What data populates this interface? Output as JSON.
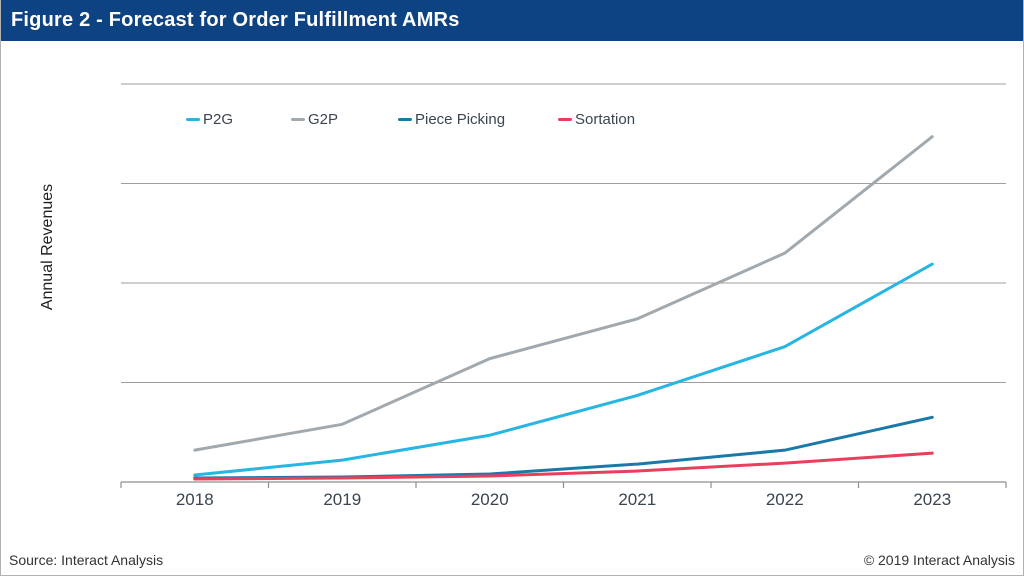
{
  "header": {
    "title": "Figure 2 - Forecast for Order Fulfillment AMRs",
    "bg_color": "#0d4383",
    "text_color": "#ffffff"
  },
  "chart_data": {
    "type": "line",
    "title": "Forecast for Order Fulfillment AMRs",
    "categories": [
      "2018",
      "2019",
      "2020",
      "2021",
      "2022",
      "2023"
    ],
    "series": [
      {
        "name": "P2G",
        "color": "#27b5e2",
        "values": [
          0.07,
          0.22,
          0.47,
          0.87,
          1.36,
          2.19
        ]
      },
      {
        "name": "G2P",
        "color": "#a2a9ae",
        "values": [
          0.32,
          0.58,
          1.24,
          1.64,
          2.3,
          3.47
        ]
      },
      {
        "name": "Piece Picking",
        "color": "#1a79a8",
        "values": [
          0.04,
          0.05,
          0.08,
          0.18,
          0.32,
          0.65
        ]
      },
      {
        "name": "Sortation",
        "color": "#e93e5c",
        "values": [
          0.03,
          0.04,
          0.06,
          0.11,
          0.19,
          0.29
        ]
      }
    ],
    "xlabel": "",
    "ylabel": "Annual Revenues",
    "ylim": [
      0,
      4.2
    ],
    "y_gridlines": [
      1,
      2,
      3,
      4
    ],
    "y_tick_labels_visible": false,
    "note": "y-axis has no numeric tick labels; values are in gridline units (1 unit = one gridline interval above the baseline)",
    "grid": "horizontal",
    "legend_position": "top-inside"
  },
  "footer": {
    "source": "Source: Interact Analysis",
    "copyright": "© 2019 Interact Analysis"
  }
}
